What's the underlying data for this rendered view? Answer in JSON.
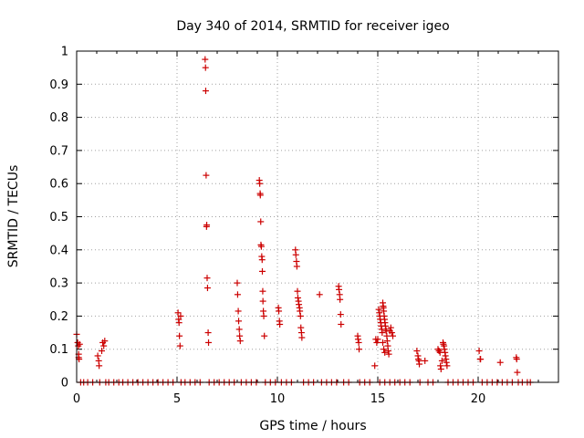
{
  "chart_data": {
    "type": "scatter",
    "title": "Day 340 of 2014, SRMTID for receiver igeo",
    "xlabel": "GPS time / hours",
    "ylabel": "SRMTID / TECUs",
    "xlim": [
      0,
      24
    ],
    "ylim": [
      0,
      1
    ],
    "xticks": [
      "0",
      "5",
      "10",
      "15",
      "20"
    ],
    "yticks": [
      "0",
      "0.1",
      "0.2",
      "0.3",
      "0.4",
      "0.5",
      "0.6",
      "0.7",
      "0.8",
      "0.9",
      "1"
    ],
    "grid": true,
    "marker": "+",
    "color": "#cc0000",
    "series": [
      {
        "name": "SRMTID",
        "points": [
          [
            0.0,
            0.145
          ],
          [
            0.05,
            0.12
          ],
          [
            0.08,
            0.11
          ],
          [
            0.1,
            0.085
          ],
          [
            0.1,
            0.075
          ],
          [
            0.12,
            0.07
          ],
          [
            0.15,
            0.115
          ],
          [
            0.2,
            0.0
          ],
          [
            0.35,
            0.0
          ],
          [
            0.55,
            0.0
          ],
          [
            0.8,
            0.0
          ],
          [
            1.05,
            0.08
          ],
          [
            1.1,
            0.065
          ],
          [
            1.12,
            0.05
          ],
          [
            1.15,
            0.0
          ],
          [
            1.25,
            0.095
          ],
          [
            1.3,
            0.12
          ],
          [
            1.35,
            0.11
          ],
          [
            1.4,
            0.125
          ],
          [
            1.45,
            0.0
          ],
          [
            1.6,
            0.0
          ],
          [
            1.85,
            0.0
          ],
          [
            2.1,
            0.0
          ],
          [
            2.3,
            0.0
          ],
          [
            2.55,
            0.0
          ],
          [
            2.8,
            0.0
          ],
          [
            3.05,
            0.0
          ],
          [
            3.3,
            0.0
          ],
          [
            3.55,
            0.0
          ],
          [
            3.8,
            0.0
          ],
          [
            4.05,
            0.0
          ],
          [
            4.3,
            0.0
          ],
          [
            4.55,
            0.0
          ],
          [
            4.8,
            0.0
          ],
          [
            5.05,
            0.21
          ],
          [
            5.08,
            0.19
          ],
          [
            5.1,
            0.18
          ],
          [
            5.12,
            0.14
          ],
          [
            5.15,
            0.11
          ],
          [
            5.18,
            0.2
          ],
          [
            5.2,
            0.0
          ],
          [
            5.4,
            0.0
          ],
          [
            5.65,
            0.0
          ],
          [
            5.9,
            0.0
          ],
          [
            6.15,
            0.0
          ],
          [
            6.4,
            0.975
          ],
          [
            6.42,
            0.95
          ],
          [
            6.43,
            0.88
          ],
          [
            6.45,
            0.625
          ],
          [
            6.47,
            0.47
          ],
          [
            6.48,
            0.475
          ],
          [
            6.5,
            0.315
          ],
          [
            6.52,
            0.285
          ],
          [
            6.55,
            0.15
          ],
          [
            6.57,
            0.12
          ],
          [
            6.6,
            0.0
          ],
          [
            6.85,
            0.0
          ],
          [
            7.1,
            0.0
          ],
          [
            7.35,
            0.0
          ],
          [
            7.6,
            0.0
          ],
          [
            7.85,
            0.0
          ],
          [
            8.0,
            0.3
          ],
          [
            8.02,
            0.265
          ],
          [
            8.05,
            0.215
          ],
          [
            8.07,
            0.185
          ],
          [
            8.1,
            0.16
          ],
          [
            8.12,
            0.14
          ],
          [
            8.15,
            0.125
          ],
          [
            8.2,
            0.0
          ],
          [
            8.45,
            0.0
          ],
          [
            8.7,
            0.0
          ],
          [
            8.95,
            0.0
          ],
          [
            9.1,
            0.61
          ],
          [
            9.12,
            0.6
          ],
          [
            9.14,
            0.57
          ],
          [
            9.15,
            0.565
          ],
          [
            9.17,
            0.485
          ],
          [
            9.18,
            0.415
          ],
          [
            9.2,
            0.41
          ],
          [
            9.22,
            0.38
          ],
          [
            9.24,
            0.37
          ],
          [
            9.25,
            0.335
          ],
          [
            9.27,
            0.275
          ],
          [
            9.28,
            0.245
          ],
          [
            9.3,
            0.215
          ],
          [
            9.32,
            0.2
          ],
          [
            9.35,
            0.14
          ],
          [
            9.4,
            0.0
          ],
          [
            9.65,
            0.0
          ],
          [
            9.9,
            0.0
          ],
          [
            10.05,
            0.225
          ],
          [
            10.07,
            0.215
          ],
          [
            10.1,
            0.185
          ],
          [
            10.12,
            0.175
          ],
          [
            10.2,
            0.0
          ],
          [
            10.45,
            0.0
          ],
          [
            10.7,
            0.0
          ],
          [
            10.9,
            0.4
          ],
          [
            10.92,
            0.385
          ],
          [
            10.95,
            0.365
          ],
          [
            10.97,
            0.35
          ],
          [
            11.0,
            0.275
          ],
          [
            11.02,
            0.255
          ],
          [
            11.05,
            0.245
          ],
          [
            11.07,
            0.235
          ],
          [
            11.1,
            0.225
          ],
          [
            11.12,
            0.215
          ],
          [
            11.15,
            0.2
          ],
          [
            11.17,
            0.165
          ],
          [
            11.2,
            0.15
          ],
          [
            11.22,
            0.135
          ],
          [
            11.3,
            0.0
          ],
          [
            11.55,
            0.0
          ],
          [
            11.8,
            0.0
          ],
          [
            12.1,
            0.265
          ],
          [
            12.2,
            0.0
          ],
          [
            12.45,
            0.0
          ],
          [
            12.7,
            0.0
          ],
          [
            12.95,
            0.0
          ],
          [
            13.05,
            0.29
          ],
          [
            13.07,
            0.28
          ],
          [
            13.1,
            0.265
          ],
          [
            13.12,
            0.25
          ],
          [
            13.15,
            0.205
          ],
          [
            13.17,
            0.175
          ],
          [
            13.3,
            0.0
          ],
          [
            13.55,
            0.0
          ],
          [
            14.0,
            0.14
          ],
          [
            14.02,
            0.13
          ],
          [
            14.05,
            0.12
          ],
          [
            14.07,
            0.1
          ],
          [
            14.1,
            0.0
          ],
          [
            14.35,
            0.0
          ],
          [
            14.6,
            0.0
          ],
          [
            14.85,
            0.05
          ],
          [
            14.9,
            0.13
          ],
          [
            14.95,
            0.12
          ],
          [
            15.0,
            0.13
          ],
          [
            15.05,
            0.22
          ],
          [
            15.08,
            0.21
          ],
          [
            15.1,
            0.2
          ],
          [
            15.12,
            0.19
          ],
          [
            15.15,
            0.18
          ],
          [
            15.17,
            0.17
          ],
          [
            15.2,
            0.16
          ],
          [
            15.22,
            0.15
          ],
          [
            15.25,
            0.24
          ],
          [
            15.27,
            0.23
          ],
          [
            15.28,
            0.225
          ],
          [
            15.3,
            0.215
          ],
          [
            15.32,
            0.2
          ],
          [
            15.34,
            0.19
          ],
          [
            15.36,
            0.18
          ],
          [
            15.38,
            0.17
          ],
          [
            15.4,
            0.16
          ],
          [
            15.42,
            0.155
          ],
          [
            15.45,
            0.14
          ],
          [
            15.47,
            0.125
          ],
          [
            15.5,
            0.11
          ],
          [
            15.52,
            0.095
          ],
          [
            15.55,
            0.085
          ],
          [
            15.6,
            0.155
          ],
          [
            15.65,
            0.165
          ],
          [
            15.7,
            0.15
          ],
          [
            15.75,
            0.14
          ],
          [
            15.25,
            0.12
          ],
          [
            15.3,
            0.1
          ],
          [
            15.35,
            0.09
          ],
          [
            15.1,
            0.0
          ],
          [
            15.35,
            0.0
          ],
          [
            15.6,
            0.0
          ],
          [
            15.85,
            0.0
          ],
          [
            16.1,
            0.0
          ],
          [
            16.35,
            0.0
          ],
          [
            16.6,
            0.0
          ],
          [
            16.95,
            0.095
          ],
          [
            17.0,
            0.08
          ],
          [
            17.02,
            0.07
          ],
          [
            17.05,
            0.065
          ],
          [
            17.07,
            0.055
          ],
          [
            17.1,
            0.0
          ],
          [
            17.35,
            0.065
          ],
          [
            17.5,
            0.0
          ],
          [
            17.75,
            0.0
          ],
          [
            18.0,
            0.1
          ],
          [
            18.05,
            0.095
          ],
          [
            18.1,
            0.09
          ],
          [
            18.12,
            0.05
          ],
          [
            18.15,
            0.04
          ],
          [
            18.2,
            0.065
          ],
          [
            18.25,
            0.12
          ],
          [
            18.27,
            0.115
          ],
          [
            18.3,
            0.11
          ],
          [
            18.32,
            0.1
          ],
          [
            18.35,
            0.09
          ],
          [
            18.37,
            0.08
          ],
          [
            18.4,
            0.07
          ],
          [
            18.42,
            0.06
          ],
          [
            18.45,
            0.05
          ],
          [
            18.5,
            0.0
          ],
          [
            18.75,
            0.0
          ],
          [
            19.0,
            0.0
          ],
          [
            19.25,
            0.0
          ],
          [
            19.5,
            0.0
          ],
          [
            19.75,
            0.0
          ],
          [
            20.05,
            0.095
          ],
          [
            20.1,
            0.07
          ],
          [
            20.12,
            0.07
          ],
          [
            20.2,
            0.0
          ],
          [
            20.45,
            0.0
          ],
          [
            20.7,
            0.0
          ],
          [
            20.95,
            0.0
          ],
          [
            21.1,
            0.06
          ],
          [
            21.2,
            0.0
          ],
          [
            21.45,
            0.0
          ],
          [
            21.7,
            0.0
          ],
          [
            21.9,
            0.075
          ],
          [
            21.92,
            0.07
          ],
          [
            21.95,
            0.03
          ],
          [
            22.0,
            0.0
          ],
          [
            22.2,
            0.0
          ],
          [
            22.45,
            0.0
          ],
          [
            22.6,
            0.0
          ]
        ]
      }
    ]
  }
}
